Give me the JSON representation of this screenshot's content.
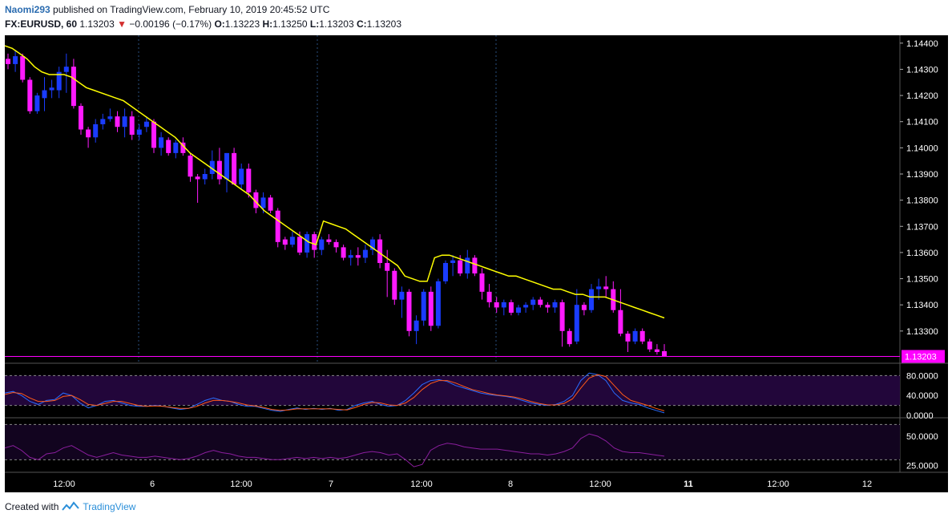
{
  "header": {
    "user": "Naomi293",
    "published_text": "published on TradingView.com, February 10, 2019 20:45:52 UTC",
    "symbol": "FX:EURUSD, 60",
    "last": "1.13203",
    "change_arrow": "▼",
    "change": "−0.00196 (−0.17%)",
    "o_label": "O:",
    "o_value": "1.13223",
    "h_label": "H:",
    "h_value": "1.13250",
    "l_label": "L:",
    "l_value": "1.13203",
    "c_label": "C:",
    "c_value": "1.13203"
  },
  "footer": {
    "created_with": "Created with",
    "brand": "TradingView"
  },
  "colors": {
    "background": "#000000",
    "bull": "#1a3cff",
    "bear": "#ff1aff",
    "ma": "#ffff00",
    "stoch_k": "#2a6cff",
    "stoch_d": "#ff5a1a",
    "rsi": "#8b1e9e",
    "panel_fill": "#22063a",
    "price_tag": "#ff00ff"
  },
  "chart_data": [
    {
      "type": "candlestick",
      "panel": "price",
      "ylim": [
        1.1318,
        1.1443
      ],
      "y_ticks": [
        "1.14400",
        "1.14300",
        "1.14200",
        "1.14100",
        "1.14000",
        "1.13900",
        "1.13800",
        "1.13700",
        "1.13600",
        "1.13500",
        "1.13400",
        "1.13300"
      ],
      "x_ticks": [
        "12:00",
        "6",
        "12:00",
        "7",
        "12:00",
        "8",
        "12:00",
        "11",
        "12:00",
        "12"
      ],
      "last_price_label": "1.13203",
      "ohlc": [
        [
          1.1434,
          1.1436,
          1.143,
          1.1432
        ],
        [
          1.1432,
          1.1437,
          1.1429,
          1.1435
        ],
        [
          1.1435,
          1.1436,
          1.1425,
          1.1426
        ],
        [
          1.1426,
          1.1427,
          1.1413,
          1.1414
        ],
        [
          1.1414,
          1.1421,
          1.1413,
          1.142
        ],
        [
          1.1419,
          1.1427,
          1.1414,
          1.1422
        ],
        [
          1.1422,
          1.1426,
          1.1419,
          1.1423
        ],
        [
          1.1422,
          1.1431,
          1.1419,
          1.1429
        ],
        [
          1.1429,
          1.1436,
          1.1421,
          1.1431
        ],
        [
          1.1431,
          1.1434,
          1.1415,
          1.1416
        ],
        [
          1.1416,
          1.1417,
          1.1405,
          1.1407
        ],
        [
          1.1407,
          1.1408,
          1.14,
          1.1404
        ],
        [
          1.1404,
          1.1411,
          1.1402,
          1.1409
        ],
        [
          1.1409,
          1.1413,
          1.1407,
          1.1411
        ],
        [
          1.1411,
          1.1415,
          1.141,
          1.1412
        ],
        [
          1.1412,
          1.1414,
          1.1406,
          1.1408
        ],
        [
          1.1408,
          1.1415,
          1.1404,
          1.1412
        ],
        [
          1.1412,
          1.1414,
          1.1403,
          1.1405
        ],
        [
          1.1405,
          1.1409,
          1.1403,
          1.1407
        ],
        [
          1.1408,
          1.1412,
          1.1406,
          1.141
        ],
        [
          1.141,
          1.1411,
          1.1398,
          1.14
        ],
        [
          1.14,
          1.1406,
          1.1397,
          1.1404
        ],
        [
          1.1403,
          1.1404,
          1.1397,
          1.1398
        ],
        [
          1.1398,
          1.1403,
          1.1396,
          1.1402
        ],
        [
          1.1402,
          1.1404,
          1.1397,
          1.1398
        ],
        [
          1.1397,
          1.1398,
          1.1387,
          1.1389
        ],
        [
          1.1389,
          1.139,
          1.1379,
          1.1388
        ],
        [
          1.1388,
          1.1392,
          1.1386,
          1.139
        ],
        [
          1.139,
          1.1399,
          1.1388,
          1.1395
        ],
        [
          1.1395,
          1.14,
          1.1386,
          1.1388
        ],
        [
          1.1388,
          1.1398,
          1.1383,
          1.1398
        ],
        [
          1.1398,
          1.14,
          1.1386,
          1.1386
        ],
        [
          1.1386,
          1.1394,
          1.1384,
          1.1392
        ],
        [
          1.1392,
          1.1394,
          1.1381,
          1.1383
        ],
        [
          1.1383,
          1.1384,
          1.1375,
          1.1377
        ],
        [
          1.1377,
          1.1383,
          1.1375,
          1.1381
        ],
        [
          1.1381,
          1.1382,
          1.1375,
          1.1376
        ],
        [
          1.1376,
          1.1377,
          1.1362,
          1.1364
        ],
        [
          1.1365,
          1.1366,
          1.1361,
          1.1363
        ],
        [
          1.1363,
          1.1368,
          1.1362,
          1.1366
        ],
        [
          1.1366,
          1.1368,
          1.1359,
          1.136
        ],
        [
          1.136,
          1.1368,
          1.1358,
          1.1367
        ],
        [
          1.1367,
          1.1368,
          1.1358,
          1.1361
        ],
        [
          1.1361,
          1.1366,
          1.1359,
          1.1365
        ],
        [
          1.1365,
          1.1367,
          1.1363,
          1.1364
        ],
        [
          1.1364,
          1.1365,
          1.136,
          1.1362
        ],
        [
          1.1362,
          1.1363,
          1.1357,
          1.1358
        ],
        [
          1.1358,
          1.1361,
          1.1355,
          1.1359
        ],
        [
          1.1359,
          1.1362,
          1.1355,
          1.1358
        ],
        [
          1.1358,
          1.1363,
          1.1356,
          1.1361
        ],
        [
          1.1361,
          1.1366,
          1.1359,
          1.1365
        ],
        [
          1.1365,
          1.1367,
          1.1354,
          1.1356
        ],
        [
          1.1356,
          1.1361,
          1.1343,
          1.1353
        ],
        [
          1.1353,
          1.1354,
          1.134,
          1.1342
        ],
        [
          1.1342,
          1.1347,
          1.1335,
          1.1345
        ],
        [
          1.1345,
          1.1346,
          1.1328,
          1.133
        ],
        [
          1.133,
          1.1336,
          1.1325,
          1.1334
        ],
        [
          1.1334,
          1.1346,
          1.1332,
          1.1345
        ],
        [
          1.1345,
          1.1347,
          1.133,
          1.1332
        ],
        [
          1.1332,
          1.135,
          1.1331,
          1.1349
        ],
        [
          1.1349,
          1.1357,
          1.1348,
          1.1356
        ],
        [
          1.1356,
          1.1359,
          1.1351,
          1.1357
        ],
        [
          1.1357,
          1.1359,
          1.1351,
          1.1352
        ],
        [
          1.1352,
          1.1361,
          1.135,
          1.1358
        ],
        [
          1.1358,
          1.1359,
          1.1351,
          1.1352
        ],
        [
          1.1352,
          1.1354,
          1.1342,
          1.1345
        ],
        [
          1.1345,
          1.1348,
          1.1339,
          1.1341
        ],
        [
          1.1341,
          1.1343,
          1.1337,
          1.1339
        ],
        [
          1.1339,
          1.1342,
          1.1336,
          1.1341
        ],
        [
          1.1341,
          1.1342,
          1.1336,
          1.1337
        ],
        [
          1.1337,
          1.134,
          1.1336,
          1.1339
        ],
        [
          1.1339,
          1.1341,
          1.1337,
          1.134
        ],
        [
          1.134,
          1.1343,
          1.1338,
          1.1342
        ],
        [
          1.1342,
          1.1343,
          1.1339,
          1.134
        ],
        [
          1.134,
          1.1341,
          1.1337,
          1.1339
        ],
        [
          1.1339,
          1.1342,
          1.1337,
          1.1341
        ],
        [
          1.1341,
          1.1342,
          1.1324,
          1.133
        ],
        [
          1.133,
          1.1331,
          1.1324,
          1.1325
        ],
        [
          1.1326,
          1.1346,
          1.1325,
          1.134
        ],
        [
          1.134,
          1.1341,
          1.1336,
          1.1338
        ],
        [
          1.1338,
          1.1348,
          1.1337,
          1.1346
        ],
        [
          1.1346,
          1.135,
          1.1342,
          1.1347
        ],
        [
          1.1347,
          1.1351,
          1.1343,
          1.1346
        ],
        [
          1.1346,
          1.1349,
          1.1337,
          1.1338
        ],
        [
          1.1338,
          1.1346,
          1.1328,
          1.1329
        ],
        [
          1.1329,
          1.133,
          1.1322,
          1.1326
        ],
        [
          1.1326,
          1.1331,
          1.1325,
          1.133
        ],
        [
          1.133,
          1.1331,
          1.1325,
          1.1326
        ],
        [
          1.1326,
          1.1327,
          1.1322,
          1.1323
        ],
        [
          1.1323,
          1.1325,
          1.1321,
          1.1322
        ],
        [
          1.13223,
          1.1325,
          1.13203,
          1.13203
        ]
      ],
      "sma": [
        1.1439,
        1.1438,
        1.1436,
        1.1434,
        1.1431,
        1.1429,
        1.1428,
        1.1428,
        1.1428,
        1.1427,
        1.1425,
        1.1423,
        1.1422,
        1.1421,
        1.142,
        1.1419,
        1.1418,
        1.1416,
        1.1414,
        1.1412,
        1.141,
        1.1408,
        1.1406,
        1.1404,
        1.1401,
        1.1398,
        1.1396,
        1.1394,
        1.1392,
        1.139,
        1.1388,
        1.1386,
        1.1384,
        1.1382,
        1.1379,
        1.1376,
        1.1374,
        1.1372,
        1.137,
        1.1368,
        1.1366,
        1.1364,
        1.1363,
        1.1372,
        1.1371,
        1.137,
        1.1369,
        1.1367,
        1.1365,
        1.1363,
        1.1361,
        1.1359,
        1.1357,
        1.1355,
        1.1351,
        1.135,
        1.1349,
        1.1349,
        1.1358,
        1.1359,
        1.1359,
        1.1358,
        1.1357,
        1.1356,
        1.1355,
        1.1354,
        1.1353,
        1.1352,
        1.1351,
        1.1351,
        1.135,
        1.1349,
        1.1348,
        1.1347,
        1.1346,
        1.1346,
        1.1345,
        1.1344,
        1.1344,
        1.1343,
        1.1343,
        1.1343,
        1.1342,
        1.1341,
        1.134,
        1.1339,
        1.1338,
        1.1337,
        1.1336,
        1.1335
      ]
    },
    {
      "type": "line",
      "panel": "stochastic",
      "ylim": [
        0,
        100
      ],
      "y_ticks": [
        "80.0000",
        "40.0000",
        "0.0000"
      ],
      "bands": [
        80,
        20
      ],
      "series": [
        {
          "values": [
            45,
            48,
            40,
            28,
            22,
            30,
            32,
            45,
            40,
            25,
            15,
            20,
            28,
            30,
            25,
            20,
            18,
            18,
            20,
            18,
            15,
            12,
            14,
            22,
            30,
            35,
            30,
            28,
            22,
            18,
            18,
            14,
            10,
            8,
            12,
            15,
            12,
            14,
            12,
            14,
            10,
            12,
            20,
            25,
            28,
            22,
            18,
            20,
            30,
            45,
            62,
            70,
            72,
            68,
            60,
            55,
            50,
            45,
            42,
            40,
            38,
            35,
            30,
            25,
            22,
            20,
            22,
            28,
            40,
            70,
            85,
            82,
            70,
            45,
            30,
            25,
            22,
            15,
            10,
            5
          ]
        },
        {
          "values": [
            42,
            46,
            44,
            35,
            28,
            28,
            30,
            38,
            40,
            32,
            22,
            20,
            24,
            28,
            28,
            24,
            20,
            18,
            19,
            18,
            16,
            14,
            14,
            18,
            25,
            30,
            30,
            28,
            25,
            21,
            19,
            16,
            12,
            10,
            11,
            13,
            13,
            13,
            13,
            13,
            12,
            11,
            16,
            22,
            26,
            25,
            21,
            20,
            25,
            36,
            52,
            64,
            70,
            70,
            65,
            58,
            52,
            48,
            44,
            41,
            39,
            37,
            33,
            28,
            24,
            21,
            21,
            24,
            33,
            55,
            75,
            82,
            78,
            60,
            42,
            30,
            25,
            20,
            14,
            9
          ]
        }
      ]
    },
    {
      "type": "line",
      "panel": "rsi",
      "ylim": [
        20,
        65
      ],
      "y_ticks": [
        "50.0000",
        "25.0000"
      ],
      "bands": [
        60,
        30
      ],
      "series": [
        {
          "values": [
            40,
            42,
            38,
            32,
            30,
            35,
            36,
            40,
            42,
            38,
            34,
            32,
            34,
            36,
            34,
            33,
            32,
            32,
            33,
            32,
            31,
            30,
            31,
            33,
            36,
            38,
            36,
            35,
            33,
            32,
            32,
            31,
            30,
            30,
            31,
            32,
            31,
            32,
            31,
            32,
            31,
            32,
            34,
            36,
            37,
            36,
            34,
            35,
            30,
            24,
            26,
            38,
            42,
            44,
            43,
            41,
            40,
            39,
            39,
            39,
            38,
            37,
            36,
            35,
            35,
            34,
            35,
            37,
            40,
            48,
            52,
            50,
            46,
            40,
            37,
            36,
            36,
            35,
            34,
            33
          ]
        }
      ]
    }
  ]
}
